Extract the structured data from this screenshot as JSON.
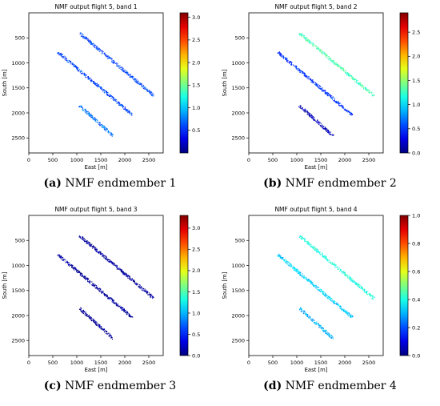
{
  "panels": [
    {
      "caption_letter": "(a)",
      "caption_text": "NMF endmember 1",
      "chart_data": {
        "type": "heatmap",
        "title": "NMF output flight 5, band 1",
        "xlabel": "East [m]",
        "ylabel": "South [m]",
        "xlim": [
          0,
          2800
        ],
        "ylim": [
          2800,
          0
        ],
        "xticks": [
          0,
          500,
          1000,
          1500,
          2000,
          2500
        ],
        "yticks": [
          500,
          1000,
          1500,
          2000,
          2500
        ],
        "colorbar_range": [
          0,
          3.1
        ],
        "colorbar_ticks": [
          0.5,
          1.0,
          1.5,
          2.0,
          2.5,
          3.0
        ],
        "colormap": "jet",
        "strips": [
          {
            "start": [
              1050,
              400
            ],
            "end": [
              2600,
              1650
            ],
            "value": 0.6
          },
          {
            "start": [
              600,
              780
            ],
            "end": [
              2150,
              2030
            ],
            "value": 0.6
          },
          {
            "start": [
              1050,
              1850
            ],
            "end": [
              1750,
              2450
            ],
            "value": 0.75
          }
        ]
      }
    },
    {
      "caption_letter": "(b)",
      "caption_text": "NMF endmember 2",
      "chart_data": {
        "type": "heatmap",
        "title": "NMF output flight 5, band 2",
        "xlabel": "East [m]",
        "ylabel": "South [m]",
        "xlim": [
          0,
          2800
        ],
        "ylim": [
          2800,
          0
        ],
        "xticks": [
          0,
          500,
          1000,
          1500,
          2000,
          2500
        ],
        "yticks": [
          500,
          1000,
          1500,
          2000,
          2500
        ],
        "colorbar_range": [
          0,
          2.9
        ],
        "colorbar_ticks": [
          0.0,
          0.5,
          1.0,
          1.5,
          2.0,
          2.5
        ],
        "colormap": "jet",
        "strips": [
          {
            "start": [
              1050,
              400
            ],
            "end": [
              2600,
              1650
            ],
            "value": 1.3
          },
          {
            "start": [
              600,
              780
            ],
            "end": [
              2150,
              2030
            ],
            "value": 0.5
          },
          {
            "start": [
              1050,
              1850
            ],
            "end": [
              1750,
              2450
            ],
            "value": 0.15
          }
        ]
      }
    },
    {
      "caption_letter": "(c)",
      "caption_text": "NMF endmember 3",
      "chart_data": {
        "type": "heatmap",
        "title": "NMF output flight 5, band 3",
        "xlabel": "East [m]",
        "ylabel": "South [m]",
        "xlim": [
          0,
          2800
        ],
        "ylim": [
          2800,
          0
        ],
        "xticks": [
          0,
          500,
          1000,
          1500,
          2000,
          2500
        ],
        "yticks": [
          500,
          1000,
          1500,
          2000,
          2500
        ],
        "colorbar_range": [
          0,
          3.3
        ],
        "colorbar_ticks": [
          0.0,
          0.5,
          1.0,
          1.5,
          2.0,
          2.5,
          3.0
        ],
        "colormap": "jet",
        "strips": [
          {
            "start": [
              1050,
              400
            ],
            "end": [
              2600,
              1650
            ],
            "value": 0.1
          },
          {
            "start": [
              600,
              780
            ],
            "end": [
              2150,
              2030
            ],
            "value": 0.08
          },
          {
            "start": [
              1050,
              1850
            ],
            "end": [
              1750,
              2450
            ],
            "value": 0.05
          }
        ]
      }
    },
    {
      "caption_letter": "(d)",
      "caption_text": "NMF endmember 4",
      "chart_data": {
        "type": "heatmap",
        "title": "NMF output flight 5, band 4",
        "xlabel": "East [m]",
        "ylabel": "South [m]",
        "xlim": [
          0,
          2800
        ],
        "ylim": [
          2800,
          0
        ],
        "xticks": [
          0,
          500,
          1000,
          1500,
          2000,
          2500
        ],
        "yticks": [
          500,
          1000,
          1500,
          2000,
          2500
        ],
        "colorbar_range": [
          0,
          1.0
        ],
        "colorbar_ticks": [
          0.0,
          0.2,
          0.4,
          0.6,
          0.8,
          1.0
        ],
        "colormap": "jet",
        "strips": [
          {
            "start": [
              1050,
              400
            ],
            "end": [
              2600,
              1650
            ],
            "value": 0.4
          },
          {
            "start": [
              600,
              780
            ],
            "end": [
              2150,
              2030
            ],
            "value": 0.33
          },
          {
            "start": [
              1050,
              1850
            ],
            "end": [
              1750,
              2450
            ],
            "value": 0.3
          }
        ]
      }
    }
  ]
}
